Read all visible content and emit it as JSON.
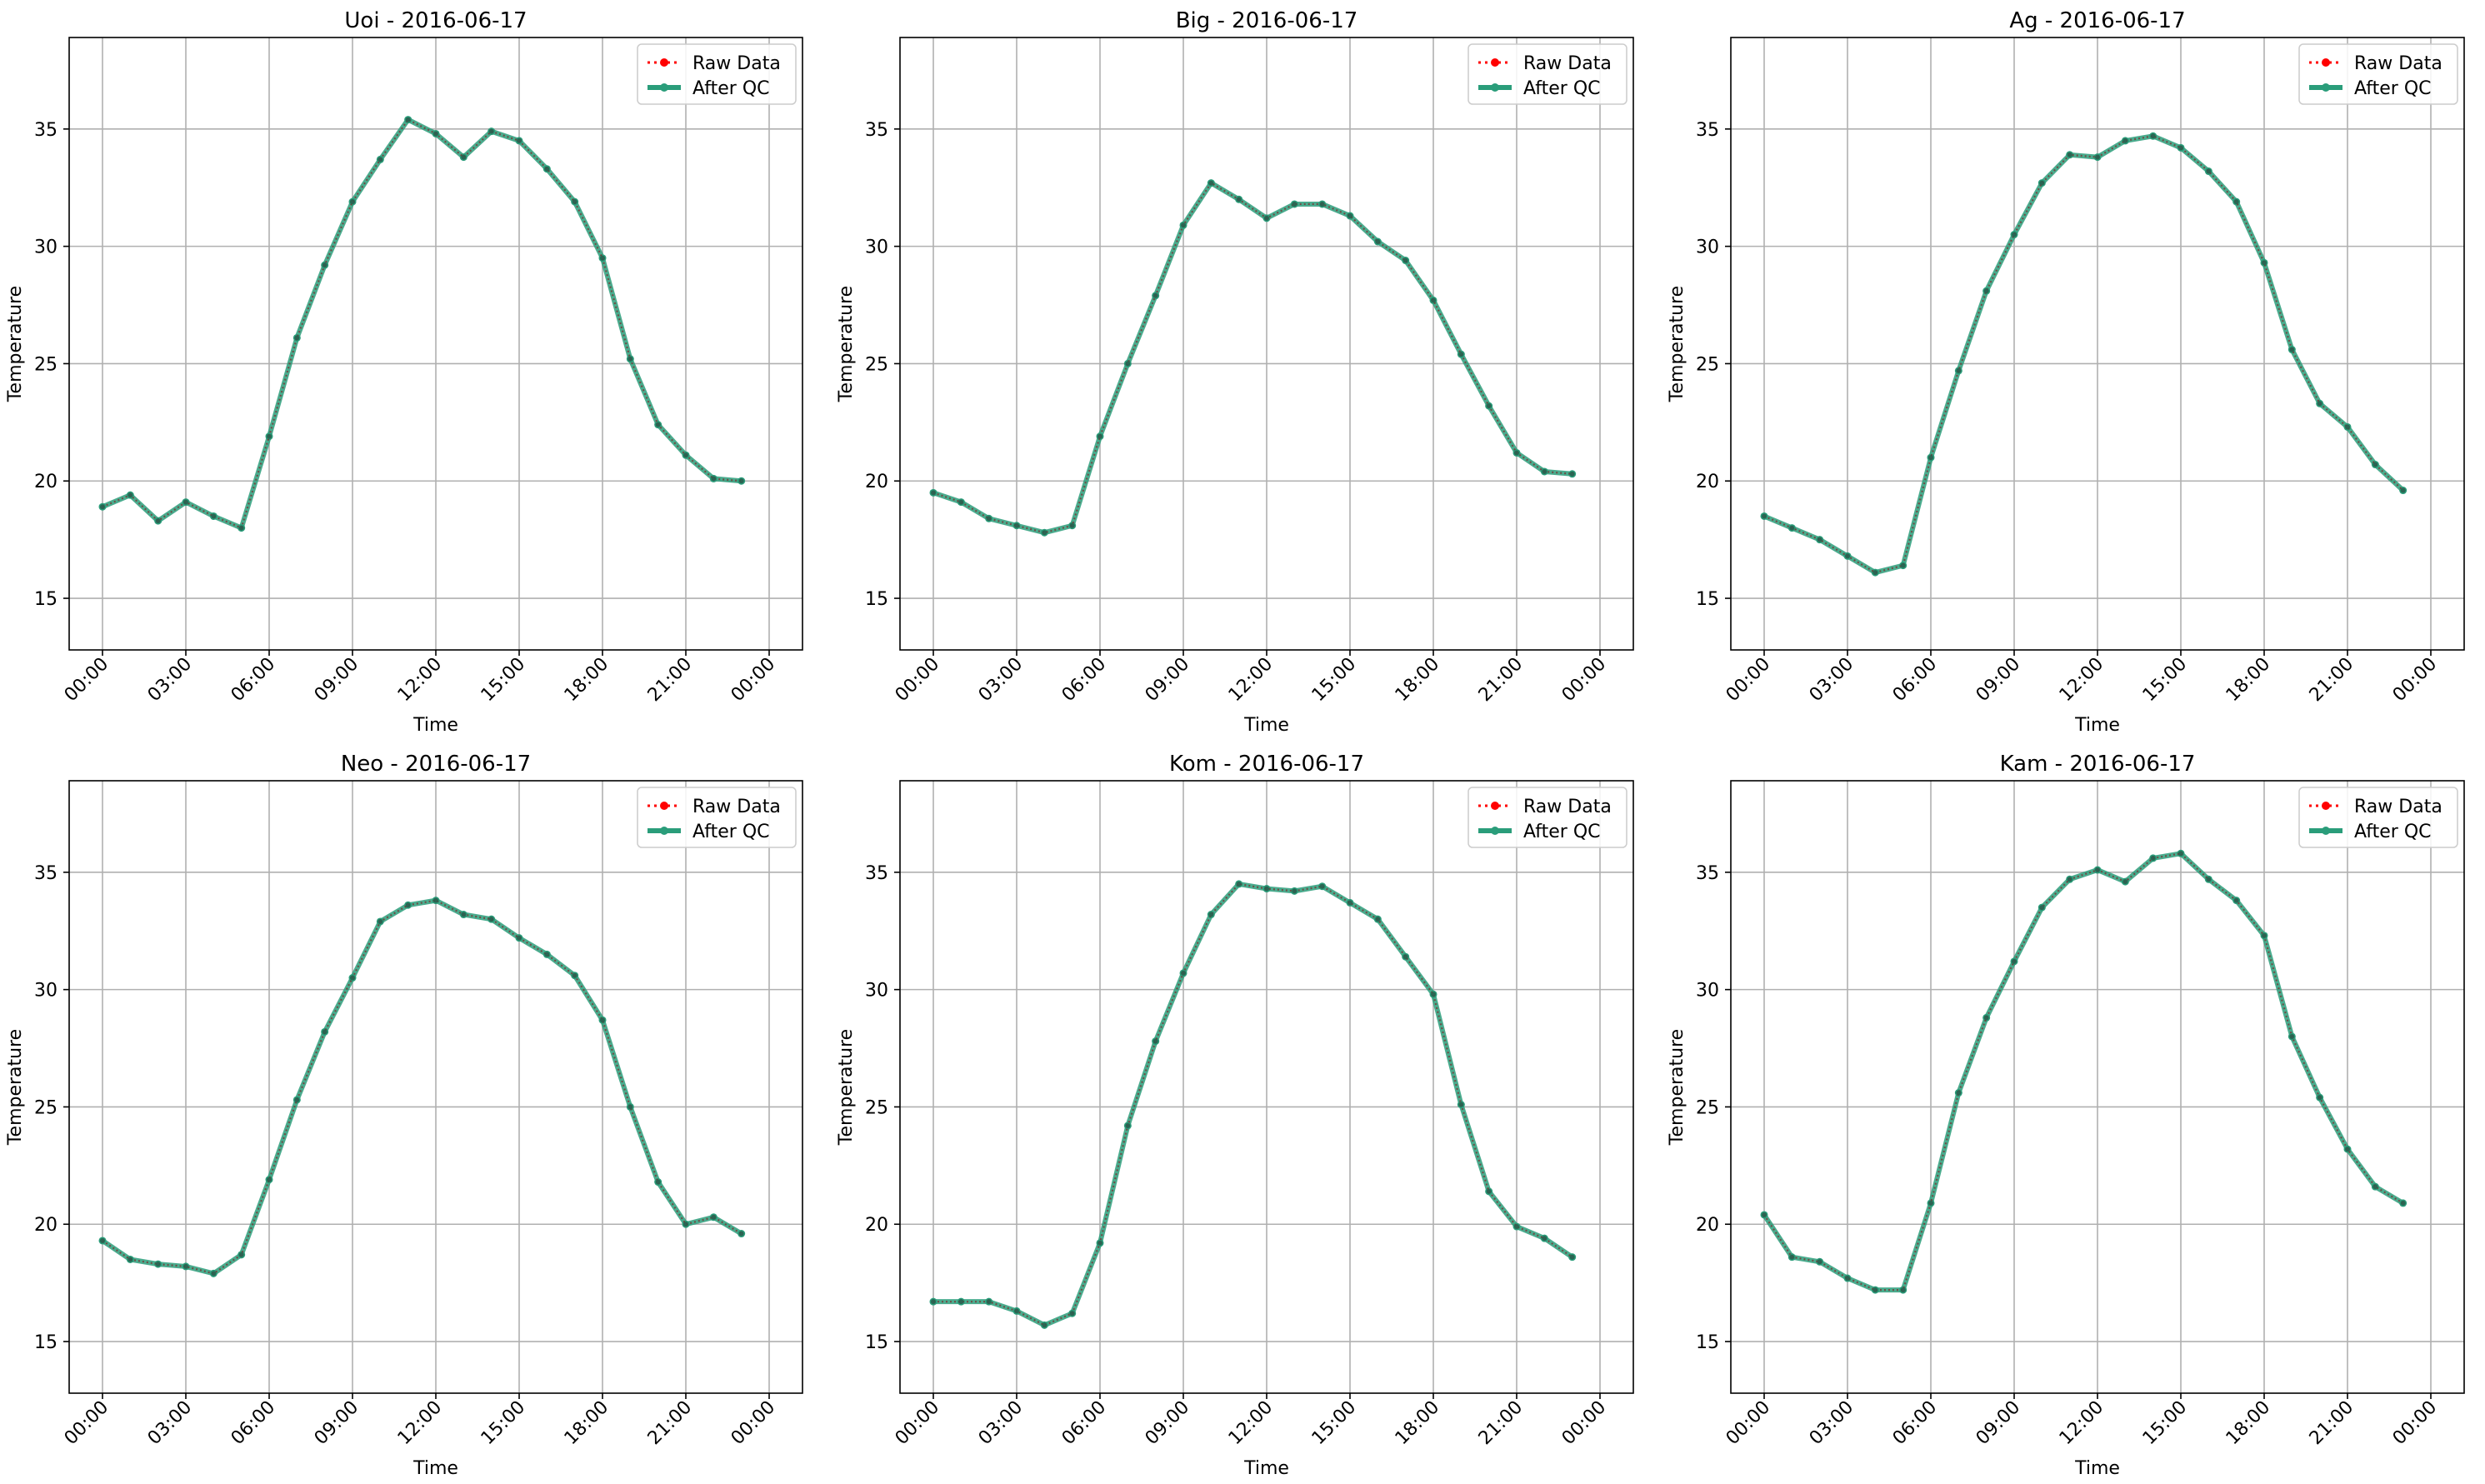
{
  "figure": {
    "colors": {
      "raw": "#ff0000",
      "qc": "#2a9d7a",
      "grid": "#b0b0b0",
      "axes": "#000000"
    }
  },
  "chart_data": [
    {
      "type": "line",
      "title": "Uoi - 2016-06-17",
      "xlabel": "Time",
      "ylabel": "Temperature",
      "x": [
        "00:00",
        "01:00",
        "02:00",
        "03:00",
        "04:00",
        "05:00",
        "06:00",
        "07:00",
        "08:00",
        "09:00",
        "10:00",
        "11:00",
        "12:00",
        "13:00",
        "14:00",
        "15:00",
        "16:00",
        "17:00",
        "18:00",
        "19:00",
        "20:00",
        "21:00",
        "22:00",
        "23:00"
      ],
      "xticks": [
        "00:00",
        "03:00",
        "06:00",
        "09:00",
        "12:00",
        "15:00",
        "18:00",
        "21:00",
        "00:00"
      ],
      "ylim": [
        12.8,
        38.9
      ],
      "yticks": [
        "15",
        "20",
        "25",
        "30",
        "35"
      ],
      "grid": true,
      "legend": "top-right",
      "series": [
        {
          "name": "Raw Data",
          "style": "dotted",
          "values": [
            18.9,
            19.4,
            18.3,
            19.1,
            18.5,
            18.0,
            21.9,
            26.1,
            29.2,
            31.9,
            33.7,
            35.4,
            34.8,
            33.8,
            34.9,
            34.5,
            33.3,
            31.9,
            29.5,
            25.2,
            22.4,
            21.1,
            20.1,
            20.0
          ]
        },
        {
          "name": "After QC",
          "style": "solid",
          "values": [
            18.9,
            19.4,
            18.3,
            19.1,
            18.5,
            18.0,
            21.9,
            26.1,
            29.2,
            31.9,
            33.7,
            35.4,
            34.8,
            33.8,
            34.9,
            34.5,
            33.3,
            31.9,
            29.5,
            25.2,
            22.4,
            21.1,
            20.1,
            20.0
          ]
        }
      ]
    },
    {
      "type": "line",
      "title": "Big - 2016-06-17",
      "xlabel": "Time",
      "ylabel": "Temperature",
      "x": [
        "00:00",
        "01:00",
        "02:00",
        "03:00",
        "04:00",
        "05:00",
        "06:00",
        "07:00",
        "08:00",
        "09:00",
        "10:00",
        "11:00",
        "12:00",
        "13:00",
        "14:00",
        "15:00",
        "16:00",
        "17:00",
        "18:00",
        "19:00",
        "20:00",
        "21:00",
        "22:00",
        "23:00"
      ],
      "xticks": [
        "00:00",
        "03:00",
        "06:00",
        "09:00",
        "12:00",
        "15:00",
        "18:00",
        "21:00",
        "00:00"
      ],
      "ylim": [
        12.8,
        38.9
      ],
      "yticks": [
        "15",
        "20",
        "25",
        "30",
        "35"
      ],
      "grid": true,
      "legend": "top-right",
      "series": [
        {
          "name": "Raw Data",
          "style": "dotted",
          "values": [
            19.5,
            19.1,
            18.4,
            18.1,
            17.8,
            18.1,
            21.9,
            25.0,
            27.9,
            30.9,
            32.7,
            32.0,
            31.2,
            31.8,
            31.8,
            31.3,
            30.2,
            29.4,
            27.7,
            25.4,
            23.2,
            21.2,
            20.4,
            20.3
          ]
        },
        {
          "name": "After QC",
          "style": "solid",
          "values": [
            19.5,
            19.1,
            18.4,
            18.1,
            17.8,
            18.1,
            21.9,
            25.0,
            27.9,
            30.9,
            32.7,
            32.0,
            31.2,
            31.8,
            31.8,
            31.3,
            30.2,
            29.4,
            27.7,
            25.4,
            23.2,
            21.2,
            20.4,
            20.3
          ]
        }
      ]
    },
    {
      "type": "line",
      "title": "Ag - 2016-06-17",
      "xlabel": "Time",
      "ylabel": "Temperature",
      "x": [
        "00:00",
        "01:00",
        "02:00",
        "03:00",
        "04:00",
        "05:00",
        "06:00",
        "07:00",
        "08:00",
        "09:00",
        "10:00",
        "11:00",
        "12:00",
        "13:00",
        "14:00",
        "15:00",
        "16:00",
        "17:00",
        "18:00",
        "19:00",
        "20:00",
        "21:00",
        "22:00",
        "23:00"
      ],
      "xticks": [
        "00:00",
        "03:00",
        "06:00",
        "09:00",
        "12:00",
        "15:00",
        "18:00",
        "21:00",
        "00:00"
      ],
      "ylim": [
        12.8,
        38.9
      ],
      "yticks": [
        "15",
        "20",
        "25",
        "30",
        "35"
      ],
      "grid": true,
      "legend": "top-right",
      "series": [
        {
          "name": "Raw Data",
          "style": "dotted",
          "values": [
            18.5,
            18.0,
            17.5,
            16.8,
            16.1,
            16.4,
            21.0,
            24.7,
            28.1,
            30.5,
            32.7,
            33.9,
            33.8,
            34.5,
            34.7,
            34.2,
            33.2,
            31.9,
            29.3,
            25.6,
            23.3,
            22.3,
            20.7,
            19.6
          ]
        },
        {
          "name": "After QC",
          "style": "solid",
          "values": [
            18.5,
            18.0,
            17.5,
            16.8,
            16.1,
            16.4,
            21.0,
            24.7,
            28.1,
            30.5,
            32.7,
            33.9,
            33.8,
            34.5,
            34.7,
            34.2,
            33.2,
            31.9,
            29.3,
            25.6,
            23.3,
            22.3,
            20.7,
            19.6
          ]
        }
      ]
    },
    {
      "type": "line",
      "title": "Neo - 2016-06-17",
      "xlabel": "Time",
      "ylabel": "Temperature",
      "x": [
        "00:00",
        "01:00",
        "02:00",
        "03:00",
        "04:00",
        "05:00",
        "06:00",
        "07:00",
        "08:00",
        "09:00",
        "10:00",
        "11:00",
        "12:00",
        "13:00",
        "14:00",
        "15:00",
        "16:00",
        "17:00",
        "18:00",
        "19:00",
        "20:00",
        "21:00",
        "22:00",
        "23:00"
      ],
      "xticks": [
        "00:00",
        "03:00",
        "06:00",
        "09:00",
        "12:00",
        "15:00",
        "18:00",
        "21:00",
        "00:00"
      ],
      "ylim": [
        12.8,
        38.9
      ],
      "yticks": [
        "15",
        "20",
        "25",
        "30",
        "35"
      ],
      "grid": true,
      "legend": "top-right",
      "series": [
        {
          "name": "Raw Data",
          "style": "dotted",
          "values": [
            19.3,
            18.5,
            18.3,
            18.2,
            17.9,
            18.7,
            21.9,
            25.3,
            28.2,
            30.5,
            32.9,
            33.6,
            33.8,
            33.2,
            33.0,
            32.2,
            31.5,
            30.6,
            28.7,
            25.0,
            21.8,
            20.0,
            20.3,
            19.6
          ]
        },
        {
          "name": "After QC",
          "style": "solid",
          "values": [
            19.3,
            18.5,
            18.3,
            18.2,
            17.9,
            18.7,
            21.9,
            25.3,
            28.2,
            30.5,
            32.9,
            33.6,
            33.8,
            33.2,
            33.0,
            32.2,
            31.5,
            30.6,
            28.7,
            25.0,
            21.8,
            20.0,
            20.3,
            19.6
          ]
        }
      ]
    },
    {
      "type": "line",
      "title": "Kom - 2016-06-17",
      "xlabel": "Time",
      "ylabel": "Temperature",
      "x": [
        "00:00",
        "01:00",
        "02:00",
        "03:00",
        "04:00",
        "05:00",
        "06:00",
        "07:00",
        "08:00",
        "09:00",
        "10:00",
        "11:00",
        "12:00",
        "13:00",
        "14:00",
        "15:00",
        "16:00",
        "17:00",
        "18:00",
        "19:00",
        "20:00",
        "21:00",
        "22:00",
        "23:00"
      ],
      "xticks": [
        "00:00",
        "03:00",
        "06:00",
        "09:00",
        "12:00",
        "15:00",
        "18:00",
        "21:00",
        "00:00"
      ],
      "ylim": [
        12.8,
        38.9
      ],
      "yticks": [
        "15",
        "20",
        "25",
        "30",
        "35"
      ],
      "grid": true,
      "legend": "top-right",
      "series": [
        {
          "name": "Raw Data",
          "style": "dotted",
          "values": [
            16.7,
            16.7,
            16.7,
            16.3,
            15.7,
            16.2,
            19.2,
            24.2,
            27.8,
            30.7,
            33.2,
            34.5,
            34.3,
            34.2,
            34.4,
            33.7,
            33.0,
            31.4,
            29.8,
            25.1,
            21.4,
            19.9,
            19.4,
            18.6
          ]
        },
        {
          "name": "After QC",
          "style": "solid",
          "values": [
            16.7,
            16.7,
            16.7,
            16.3,
            15.7,
            16.2,
            19.2,
            24.2,
            27.8,
            30.7,
            33.2,
            34.5,
            34.3,
            34.2,
            34.4,
            33.7,
            33.0,
            31.4,
            29.8,
            25.1,
            21.4,
            19.9,
            19.4,
            18.6
          ]
        }
      ]
    },
    {
      "type": "line",
      "title": "Kam - 2016-06-17",
      "xlabel": "Time",
      "ylabel": "Temperature",
      "x": [
        "00:00",
        "01:00",
        "02:00",
        "03:00",
        "04:00",
        "05:00",
        "06:00",
        "07:00",
        "08:00",
        "09:00",
        "10:00",
        "11:00",
        "12:00",
        "13:00",
        "14:00",
        "15:00",
        "16:00",
        "17:00",
        "18:00",
        "19:00",
        "20:00",
        "21:00",
        "22:00",
        "23:00"
      ],
      "xticks": [
        "00:00",
        "03:00",
        "06:00",
        "09:00",
        "12:00",
        "15:00",
        "18:00",
        "21:00",
        "00:00"
      ],
      "ylim": [
        12.8,
        38.9
      ],
      "yticks": [
        "15",
        "20",
        "25",
        "30",
        "35"
      ],
      "grid": true,
      "legend": "top-right",
      "series": [
        {
          "name": "Raw Data",
          "style": "dotted",
          "values": [
            20.4,
            18.6,
            18.4,
            17.7,
            17.2,
            17.2,
            20.9,
            25.6,
            28.8,
            31.2,
            33.5,
            34.7,
            35.1,
            34.6,
            35.6,
            35.8,
            34.7,
            33.8,
            32.3,
            28.0,
            25.4,
            23.2,
            21.6,
            20.9
          ]
        },
        {
          "name": "After QC",
          "style": "solid",
          "values": [
            20.4,
            18.6,
            18.4,
            17.7,
            17.2,
            17.2,
            20.9,
            25.6,
            28.8,
            31.2,
            33.5,
            34.7,
            35.1,
            34.6,
            35.6,
            35.8,
            34.7,
            33.8,
            32.3,
            28.0,
            25.4,
            23.2,
            21.6,
            20.9
          ]
        }
      ]
    }
  ]
}
